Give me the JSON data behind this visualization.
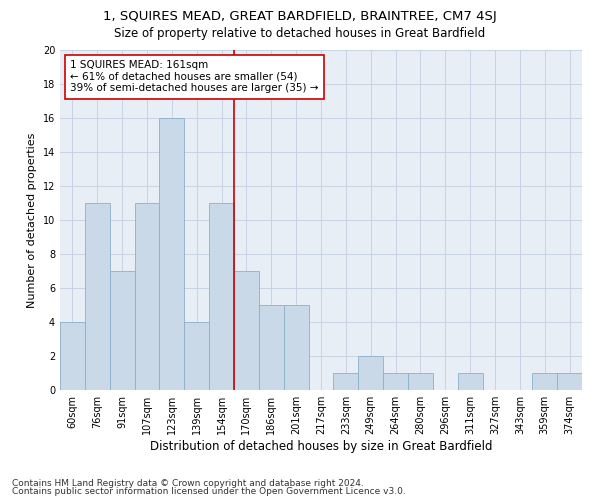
{
  "title1": "1, SQUIRES MEAD, GREAT BARDFIELD, BRAINTREE, CM7 4SJ",
  "title2": "Size of property relative to detached houses in Great Bardfield",
  "xlabel": "Distribution of detached houses by size in Great Bardfield",
  "ylabel": "Number of detached properties",
  "bar_labels": [
    "60sqm",
    "76sqm",
    "91sqm",
    "107sqm",
    "123sqm",
    "139sqm",
    "154sqm",
    "170sqm",
    "186sqm",
    "201sqm",
    "217sqm",
    "233sqm",
    "249sqm",
    "264sqm",
    "280sqm",
    "296sqm",
    "311sqm",
    "327sqm",
    "343sqm",
    "359sqm",
    "374sqm"
  ],
  "bar_values": [
    4,
    11,
    7,
    11,
    16,
    4,
    11,
    7,
    5,
    5,
    0,
    1,
    2,
    1,
    1,
    0,
    1,
    0,
    0,
    1,
    1
  ],
  "bar_color": "#c9d9e8",
  "bar_edgecolor": "#8ab0cc",
  "vline_x_idx": 6.5,
  "vline_color": "#cc0000",
  "annotation_line1": "1 SQUIRES MEAD: 161sqm",
  "annotation_line2": "← 61% of detached houses are smaller (54)",
  "annotation_line3": "39% of semi-detached houses are larger (35) →",
  "annotation_box_color": "#ffffff",
  "annotation_box_edgecolor": "#cc0000",
  "ylim": [
    0,
    20
  ],
  "yticks": [
    0,
    2,
    4,
    6,
    8,
    10,
    12,
    14,
    16,
    18,
    20
  ],
  "grid_color": "#c8d4e4",
  "bg_color": "#e8eef6",
  "footer1": "Contains HM Land Registry data © Crown copyright and database right 2024.",
  "footer2": "Contains public sector information licensed under the Open Government Licence v3.0.",
  "title1_fontsize": 9.5,
  "title2_fontsize": 8.5,
  "xlabel_fontsize": 8.5,
  "ylabel_fontsize": 8,
  "tick_fontsize": 7,
  "annot_fontsize": 7.5,
  "footer_fontsize": 6.5
}
